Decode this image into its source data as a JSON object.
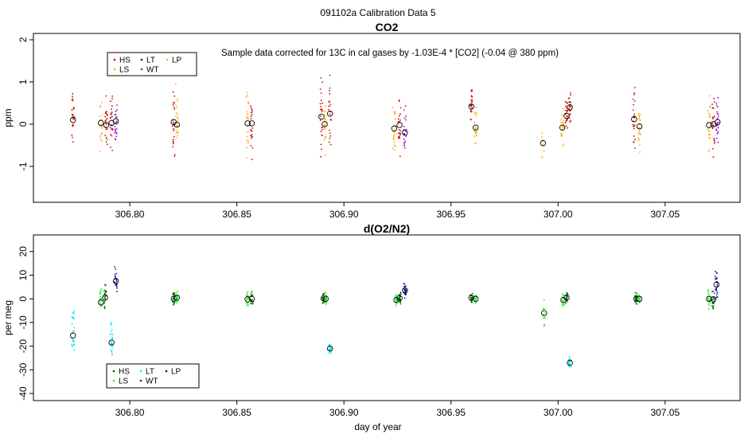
{
  "page_title": "091102a   Calibration Data 5",
  "x_axis_label": "day of year",
  "chart_data": [
    {
      "type": "scatter",
      "title": "CO2",
      "ylabel": "ppm",
      "xlim": [
        306.755,
        307.085
      ],
      "ylim": [
        -1.85,
        2.15
      ],
      "xticks": [
        "306.80",
        "306.85",
        "306.90",
        "306.95",
        "307.00",
        "307.05"
      ],
      "yticks": [
        "-1",
        "0",
        "1",
        "2"
      ],
      "annotation": "Sample data corrected for 13C in cal gases by -1.03E-4 * [CO2] (-0.04 @ 380 ppm)",
      "legend_position": "top-left",
      "legend": [
        {
          "label": "HS",
          "color": "#cc0000"
        },
        {
          "label": "LT",
          "color": "#222222"
        },
        {
          "label": "LP",
          "color": "#ffaa00"
        },
        {
          "label": "LS",
          "color": "#ffaa00"
        },
        {
          "label": "WT",
          "color": "#555555"
        }
      ],
      "clusters": [
        {
          "x": 306.7735,
          "mean": 0.1,
          "spread": 1.5,
          "color": "#cc0000",
          "n": 24
        },
        {
          "x": 306.7865,
          "mean": 0.03,
          "spread": 1.1,
          "color": "#ffaa00",
          "n": 22
        },
        {
          "x": 306.789,
          "mean": -0.02,
          "spread": 1.3,
          "color": "#cc0000",
          "n": 22
        },
        {
          "x": 306.7915,
          "mean": 0.03,
          "spread": 1.2,
          "color": "#cc0000",
          "n": 22
        },
        {
          "x": 306.7935,
          "mean": 0.07,
          "spread": 0.9,
          "color": "#9900cc",
          "n": 22
        },
        {
          "x": 306.8205,
          "mean": 0.05,
          "spread": 1.5,
          "color": "#cc0000",
          "n": 24
        },
        {
          "x": 306.822,
          "mean": -0.01,
          "spread": 1.3,
          "color": "#ffaa00",
          "n": 24
        },
        {
          "x": 306.855,
          "mean": 0.02,
          "spread": 1.4,
          "color": "#ffaa00",
          "n": 24
        },
        {
          "x": 306.857,
          "mean": 0.02,
          "spread": 1.2,
          "color": "#cc0000",
          "n": 22
        },
        {
          "x": 306.8895,
          "mean": 0.18,
          "spread": 1.5,
          "color": "#cc0000",
          "n": 24
        },
        {
          "x": 306.891,
          "mean": 0.0,
          "spread": 1.2,
          "color": "#ffaa00",
          "n": 22
        },
        {
          "x": 306.8935,
          "mean": 0.25,
          "spread": 1.3,
          "color": "#cc0000",
          "n": 22
        },
        {
          "x": 306.9235,
          "mean": -0.1,
          "spread": 1.1,
          "color": "#ffaa00",
          "n": 22
        },
        {
          "x": 306.926,
          "mean": -0.02,
          "spread": 1.1,
          "color": "#cc0000",
          "n": 22
        },
        {
          "x": 306.9285,
          "mean": -0.2,
          "spread": 1.0,
          "color": "#9900cc",
          "n": 22
        },
        {
          "x": 306.9595,
          "mean": 0.42,
          "spread": 0.8,
          "color": "#cc0000",
          "n": 22
        },
        {
          "x": 306.9615,
          "mean": -0.08,
          "spread": 0.9,
          "color": "#ffaa00",
          "n": 22
        },
        {
          "x": 306.993,
          "mean": -0.45,
          "spread": 0.6,
          "color": "#ffaa00",
          "n": 10
        },
        {
          "x": 307.002,
          "mean": -0.08,
          "spread": 0.8,
          "color": "#ffaa00",
          "n": 22
        },
        {
          "x": 307.004,
          "mean": 0.2,
          "spread": 0.8,
          "color": "#cc0000",
          "n": 22
        },
        {
          "x": 307.0055,
          "mean": 0.4,
          "spread": 0.7,
          "color": "#cc0000",
          "n": 20
        },
        {
          "x": 307.0355,
          "mean": 0.12,
          "spread": 1.4,
          "color": "#cc0000",
          "n": 24
        },
        {
          "x": 307.038,
          "mean": -0.05,
          "spread": 1.1,
          "color": "#ffaa00",
          "n": 22
        },
        {
          "x": 307.0705,
          "mean": -0.02,
          "spread": 1.3,
          "color": "#ffaa00",
          "n": 24
        },
        {
          "x": 307.0725,
          "mean": 0.0,
          "spread": 1.2,
          "color": "#cc0000",
          "n": 22
        },
        {
          "x": 307.0745,
          "mean": 0.05,
          "spread": 1.0,
          "color": "#9900cc",
          "n": 22
        }
      ]
    },
    {
      "type": "scatter",
      "title": "d(O2/N2)",
      "ylabel": "per meg",
      "xlim": [
        306.755,
        307.085
      ],
      "ylim": [
        -43,
        27
      ],
      "xticks": [
        "306.80",
        "306.85",
        "306.90",
        "306.95",
        "307.00",
        "307.05"
      ],
      "yticks": [
        "-40",
        "-30",
        "-20",
        "-10",
        "0",
        "10",
        "20"
      ],
      "legend_position": "bottom-left",
      "legend": [
        {
          "label": "HS",
          "color": "#006600"
        },
        {
          "label": "LT",
          "color": "#00e5ee"
        },
        {
          "label": "LP",
          "color": "#000099"
        },
        {
          "label": "LS",
          "color": "#33ee33"
        },
        {
          "label": "WT",
          "color": "#333333"
        }
      ],
      "clusters": [
        {
          "x": 306.7735,
          "mean": -15.5,
          "spread": 24,
          "color": "#00e5ee",
          "n": 26
        },
        {
          "x": 306.7865,
          "mean": -1.5,
          "spread": 10,
          "color": "#33ee33",
          "n": 22
        },
        {
          "x": 306.7885,
          "mean": 0.5,
          "spread": 12,
          "color": "#006600",
          "n": 22
        },
        {
          "x": 306.7915,
          "mean": -18.5,
          "spread": 14,
          "color": "#00e5ee",
          "n": 24
        },
        {
          "x": 306.7935,
          "mean": 7.5,
          "spread": 9,
          "color": "#000099",
          "n": 22
        },
        {
          "x": 306.8205,
          "mean": 0.0,
          "spread": 6,
          "color": "#006600",
          "n": 22
        },
        {
          "x": 306.822,
          "mean": 0.5,
          "spread": 5,
          "color": "#33ee33",
          "n": 22
        },
        {
          "x": 306.855,
          "mean": -0.2,
          "spread": 6,
          "color": "#33ee33",
          "n": 22
        },
        {
          "x": 306.857,
          "mean": 0.0,
          "spread": 6,
          "color": "#006600",
          "n": 22
        },
        {
          "x": 306.8905,
          "mean": 0.2,
          "spread": 4,
          "color": "#006600",
          "n": 22
        },
        {
          "x": 306.8915,
          "mean": 0.0,
          "spread": 5,
          "color": "#33ee33",
          "n": 22
        },
        {
          "x": 306.8935,
          "mean": -21.0,
          "spread": 4,
          "color": "#00e5ee",
          "n": 22
        },
        {
          "x": 306.9245,
          "mean": -0.5,
          "spread": 4,
          "color": "#33ee33",
          "n": 22
        },
        {
          "x": 306.926,
          "mean": 0.3,
          "spread": 5,
          "color": "#006600",
          "n": 22
        },
        {
          "x": 306.9285,
          "mean": 3.5,
          "spread": 7,
          "color": "#000099",
          "n": 22
        },
        {
          "x": 306.9595,
          "mean": 0.5,
          "spread": 4,
          "color": "#006600",
          "n": 22
        },
        {
          "x": 306.9615,
          "mean": 0.0,
          "spread": 4,
          "color": "#33ee33",
          "n": 22
        },
        {
          "x": 306.9935,
          "mean": -6.0,
          "spread": 10,
          "color": "#33ee33",
          "n": 14
        },
        {
          "x": 307.0025,
          "mean": -0.5,
          "spread": 4,
          "color": "#33ee33",
          "n": 20
        },
        {
          "x": 307.004,
          "mean": 0.5,
          "spread": 4,
          "color": "#006600",
          "n": 20
        },
        {
          "x": 307.0055,
          "mean": -27.0,
          "spread": 5,
          "color": "#00e5ee",
          "n": 22
        },
        {
          "x": 307.0365,
          "mean": 0.0,
          "spread": 4,
          "color": "#006600",
          "n": 22
        },
        {
          "x": 307.038,
          "mean": 0.0,
          "spread": 4,
          "color": "#33ee33",
          "n": 22
        },
        {
          "x": 307.0705,
          "mean": 0.0,
          "spread": 8,
          "color": "#33ee33",
          "n": 22
        },
        {
          "x": 307.0725,
          "mean": -0.2,
          "spread": 10,
          "color": "#006600",
          "n": 22
        },
        {
          "x": 307.074,
          "mean": 6.0,
          "spread": 14,
          "color": "#000099",
          "n": 24
        }
      ]
    }
  ]
}
